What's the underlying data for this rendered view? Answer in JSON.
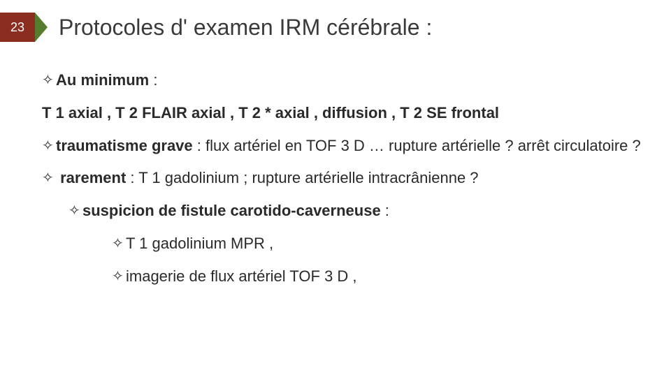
{
  "slide": {
    "number": "23",
    "title": "Protocoles d' examen IRM cérébrale  :",
    "badge_bg": "#8b2e1f",
    "arrow_color": "#567d2e",
    "text_color": "#2a2a2a",
    "title_color": "#3a3a3a",
    "title_fontsize": 32,
    "body_fontsize": 22
  },
  "bullets": {
    "b1_bold": "Au minimum",
    "b1_rest": "     :",
    "line2": "T 1 axial ,  T 2 FLAIR axial  ,  T 2 * axial  ,  diffusion ,     T 2 SE frontal",
    "b3_bold": "traumatisme grave",
    "b3_rest": "  :  flux artériel en TOF 3 D  … rupture artérielle ? arrêt circulatoire ?",
    "b4_bold": " rarement",
    "b4_rest": "  :  T 1 gadolinium ;  rupture artérielle intracrânienne ?",
    "b5_bold": "suspicion de fistule carotido-caverneuse",
    "b5_rest": "  :",
    "b6": "T 1 gadolinium MPR ,",
    "b7": "imagerie de flux artériel TOF 3 D ,"
  },
  "bullet_glyph": "✧"
}
